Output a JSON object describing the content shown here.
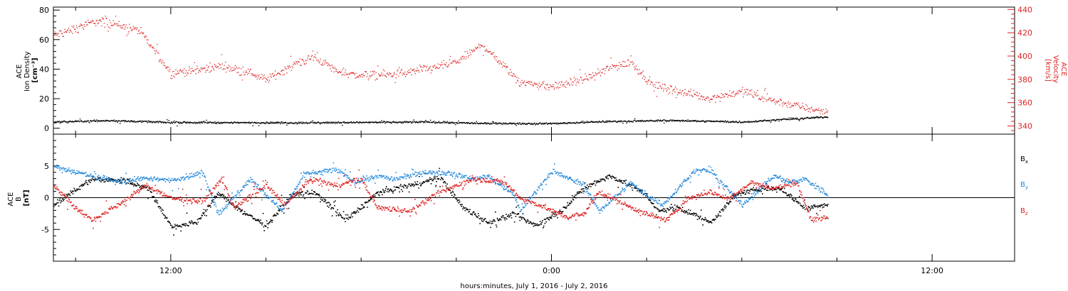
{
  "chart_data": [
    {
      "type": "scatter",
      "panel": "top",
      "xlabel": "hours:minutes, July  1, 2016 - July  2, 2016",
      "x_tick_labels": [
        "12:00",
        "0:00",
        "12:00"
      ],
      "x_tick_hours": [
        12,
        24,
        36
      ],
      "xlim_hours": [
        8.3,
        38.6
      ],
      "data_end_hour": 32.7,
      "left_axis": {
        "label_line1": "ACE",
        "label_line2": "Ion Density",
        "label_line3": "[cm⁻³]",
        "ylim": [
          -4,
          82
        ],
        "ticks": [
          0,
          20,
          40,
          60,
          80
        ],
        "color": "#000000"
      },
      "right_axis": {
        "label_line1": "ACE",
        "label_line2": "Velocity",
        "label_line3": "[km/s]",
        "ylim": [
          333,
          442
        ],
        "ticks": [
          340,
          360,
          380,
          400,
          420,
          440
        ],
        "color": "#dd2222"
      },
      "series": [
        {
          "name": "",
          "axis": "right",
          "color": "#dd2222",
          "key_hours": [
            8.3,
            9.0,
            9.6,
            10.2,
            11.0,
            12.0,
            12.8,
            13.6,
            14.5,
            15.0,
            15.8,
            16.5,
            17.2,
            17.8,
            18.5,
            19.2,
            20.0,
            21.0,
            21.8,
            22.2,
            23.0,
            24.0,
            25.0,
            25.8,
            26.5,
            27.2,
            28.0,
            29.0,
            30.0,
            30.6,
            31.0,
            32.0,
            32.7
          ],
          "key_values": [
            418,
            424,
            430,
            428,
            422,
            386,
            388,
            392,
            386,
            380,
            392,
            400,
            388,
            384,
            384,
            385,
            389,
            395,
            410,
            400,
            378,
            374,
            380,
            390,
            395,
            375,
            370,
            364,
            370,
            365,
            362,
            356,
            352
          ]
        },
        {
          "name": "",
          "axis": "left",
          "color": "#000000",
          "key_hours": [
            8.3,
            10.0,
            12.0,
            16.0,
            20.0,
            22.0,
            24.0,
            26.0,
            28.0,
            30.0,
            32.7
          ],
          "key_values": [
            4.5,
            5.5,
            4.2,
            4.0,
            4.5,
            3.5,
            3.5,
            5.0,
            5.5,
            4.5,
            8.0
          ]
        }
      ]
    },
    {
      "type": "scatter",
      "panel": "bottom",
      "y_axis": {
        "label_line1": "ACE",
        "label_line2": "B",
        "label_line3": "[nT]",
        "ylim": [
          -10,
          10
        ],
        "ticks": [
          -5,
          0,
          5
        ]
      },
      "legend_position": "right",
      "series": [
        {
          "name": "Bx",
          "legend_main": "B",
          "legend_sub": "x",
          "color": "#000000",
          "key_hours": [
            8.3,
            9.5,
            10.5,
            11.3,
            12.0,
            12.8,
            13.5,
            14.2,
            15.0,
            15.8,
            16.5,
            17.5,
            18.5,
            19.5,
            20.5,
            21.2,
            22.0,
            22.8,
            23.5,
            24.3,
            25.0,
            25.8,
            26.5,
            27.0,
            27.3,
            28.0,
            29.0,
            29.8,
            30.5,
            31.2,
            32.0,
            32.7
          ],
          "key_values": [
            -1.0,
            3.0,
            2.8,
            1.5,
            -4.5,
            -3.8,
            0.8,
            -2.0,
            -4.3,
            0.5,
            1.0,
            -3.5,
            0.8,
            2.0,
            3.2,
            -1.5,
            -3.8,
            -2.5,
            -4.3,
            -2.0,
            1.5,
            3.5,
            2.0,
            0.5,
            -2.0,
            -1.5,
            -3.8,
            0.5,
            1.5,
            1.5,
            -1.5,
            -1.0
          ]
        },
        {
          "name": "By",
          "legend_main": "B",
          "legend_sub": "y",
          "color": "#2288dd",
          "key_hours": [
            8.3,
            9.5,
            10.5,
            11.0,
            12.0,
            13.0,
            13.5,
            14.5,
            15.0,
            15.5,
            16.2,
            17.2,
            17.8,
            18.5,
            19.0,
            20.0,
            20.8,
            21.5,
            22.0,
            22.8,
            23.0,
            24.0,
            25.0,
            25.5,
            26.5,
            26.8,
            27.5,
            28.5,
            29.0,
            30.0,
            31.0,
            31.5,
            32.0,
            32.7
          ],
          "key_values": [
            5.0,
            3.5,
            2.5,
            3.2,
            2.8,
            4.0,
            -2.5,
            3.0,
            0.5,
            -2.0,
            3.8,
            4.5,
            2.5,
            3.5,
            3.0,
            4.0,
            4.0,
            3.0,
            3.5,
            0.5,
            -2.0,
            4.3,
            2.0,
            -2.0,
            2.5,
            1.0,
            -1.0,
            4.3,
            4.3,
            -1.0,
            3.5,
            2.5,
            3.0,
            0.5
          ]
        },
        {
          "name": "Bz",
          "legend_main": "B",
          "legend_sub": "z",
          "color": "#dd2222",
          "key_hours": [
            8.3,
            9.0,
            9.5,
            10.5,
            11.2,
            12.0,
            13.0,
            13.6,
            14.0,
            15.0,
            15.6,
            16.4,
            17.2,
            18.0,
            18.5,
            19.5,
            20.5,
            21.5,
            22.5,
            23.0,
            23.8,
            24.5,
            25.0,
            25.5,
            26.3,
            27.0,
            27.6,
            28.3,
            29.0,
            29.6,
            30.3,
            31.0,
            31.7,
            32.2,
            32.7
          ],
          "key_values": [
            2.0,
            -1.5,
            -3.5,
            -0.5,
            2.0,
            0.0,
            -0.5,
            3.0,
            -1.5,
            2.0,
            -1.0,
            3.0,
            2.0,
            3.0,
            -1.5,
            -2.0,
            1.0,
            3.0,
            2.5,
            0.0,
            -1.5,
            -3.0,
            -2.5,
            1.0,
            -1.0,
            -2.5,
            -3.5,
            0.0,
            1.0,
            0.0,
            2.5,
            1.5,
            2.5,
            -3.5,
            -3.0
          ]
        }
      ]
    }
  ]
}
